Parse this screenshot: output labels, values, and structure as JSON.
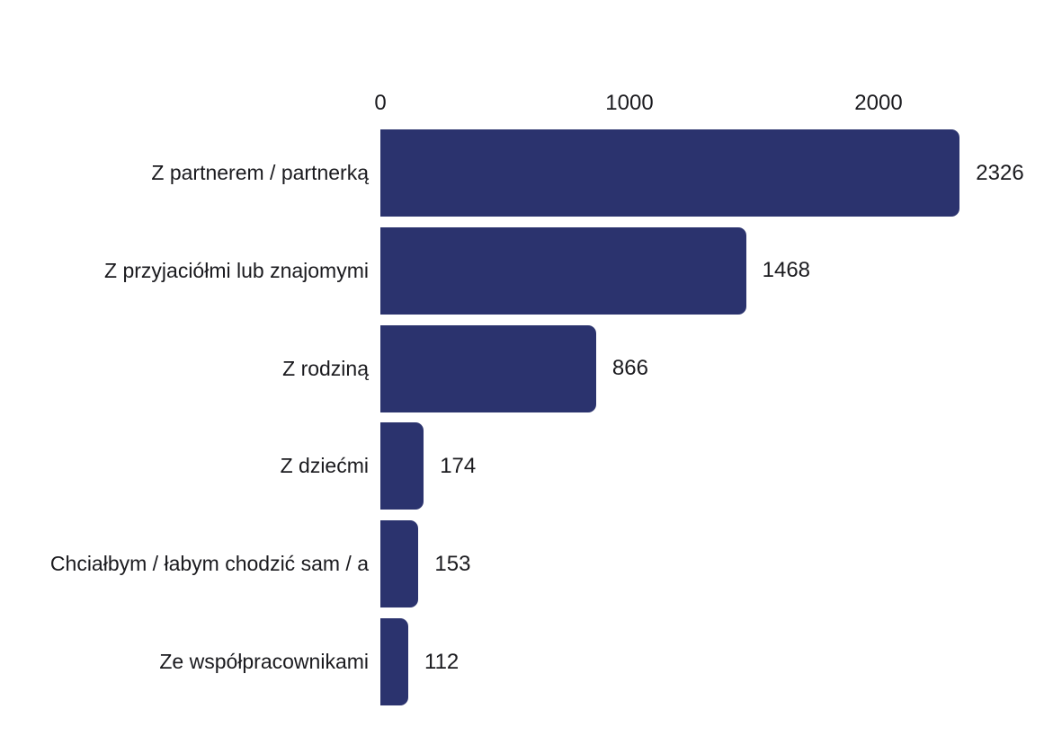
{
  "chart_data": {
    "type": "bar",
    "orientation": "horizontal",
    "title": "",
    "xlabel": "",
    "ylabel": "",
    "axis_position": "top",
    "x_ticks": [
      0,
      1000,
      2000
    ],
    "x_tick_labels": [
      "0",
      "1000",
      "2000"
    ],
    "xlim": [
      0,
      2326
    ],
    "grid": false,
    "legend": false,
    "bar_color": "#2b336e",
    "text_color": "#1a1a1e",
    "background_color": "#ffffff",
    "categories": [
      "Z partnerem / partnerką",
      "Z przyjaciółmi lub znajomymi",
      "Z rodziną",
      "Z dziećmi",
      "Chciałbym / łabym chodzić sam / a",
      "Ze współpracownikami"
    ],
    "values": [
      2326,
      1468,
      866,
      174,
      153,
      112
    ],
    "value_labels": [
      "2326",
      "1468",
      "866",
      "174",
      "153",
      "112"
    ]
  }
}
